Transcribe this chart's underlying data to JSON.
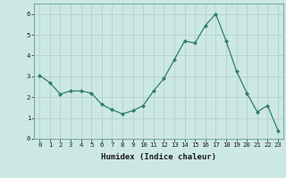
{
  "x": [
    0,
    1,
    2,
    3,
    4,
    5,
    6,
    7,
    8,
    9,
    10,
    11,
    12,
    13,
    14,
    15,
    16,
    17,
    18,
    19,
    20,
    21,
    22,
    23
  ],
  "y": [
    3.05,
    2.7,
    2.15,
    2.3,
    2.3,
    2.2,
    1.65,
    1.4,
    1.2,
    1.35,
    1.6,
    2.3,
    2.9,
    3.8,
    4.7,
    4.6,
    5.45,
    6.0,
    4.7,
    3.25,
    2.2,
    1.3,
    1.6,
    0.4
  ],
  "xlabel": "Humidex (Indice chaleur)",
  "ylim": [
    0,
    6.5
  ],
  "xlim": [
    -0.5,
    23.5
  ],
  "yticks": [
    0,
    1,
    2,
    3,
    4,
    5,
    6
  ],
  "xticks": [
    0,
    1,
    2,
    3,
    4,
    5,
    6,
    7,
    8,
    9,
    10,
    11,
    12,
    13,
    14,
    15,
    16,
    17,
    18,
    19,
    20,
    21,
    22,
    23
  ],
  "line_color": "#2e7d6e",
  "marker": "D",
  "marker_size": 2.0,
  "bg_color": "#cce8e4",
  "grid_color_major": "#b0ccc8",
  "grid_color_minor": "#b0ccc8",
  "xlabel_fontsize": 6.5,
  "tick_fontsize": 5.2
}
